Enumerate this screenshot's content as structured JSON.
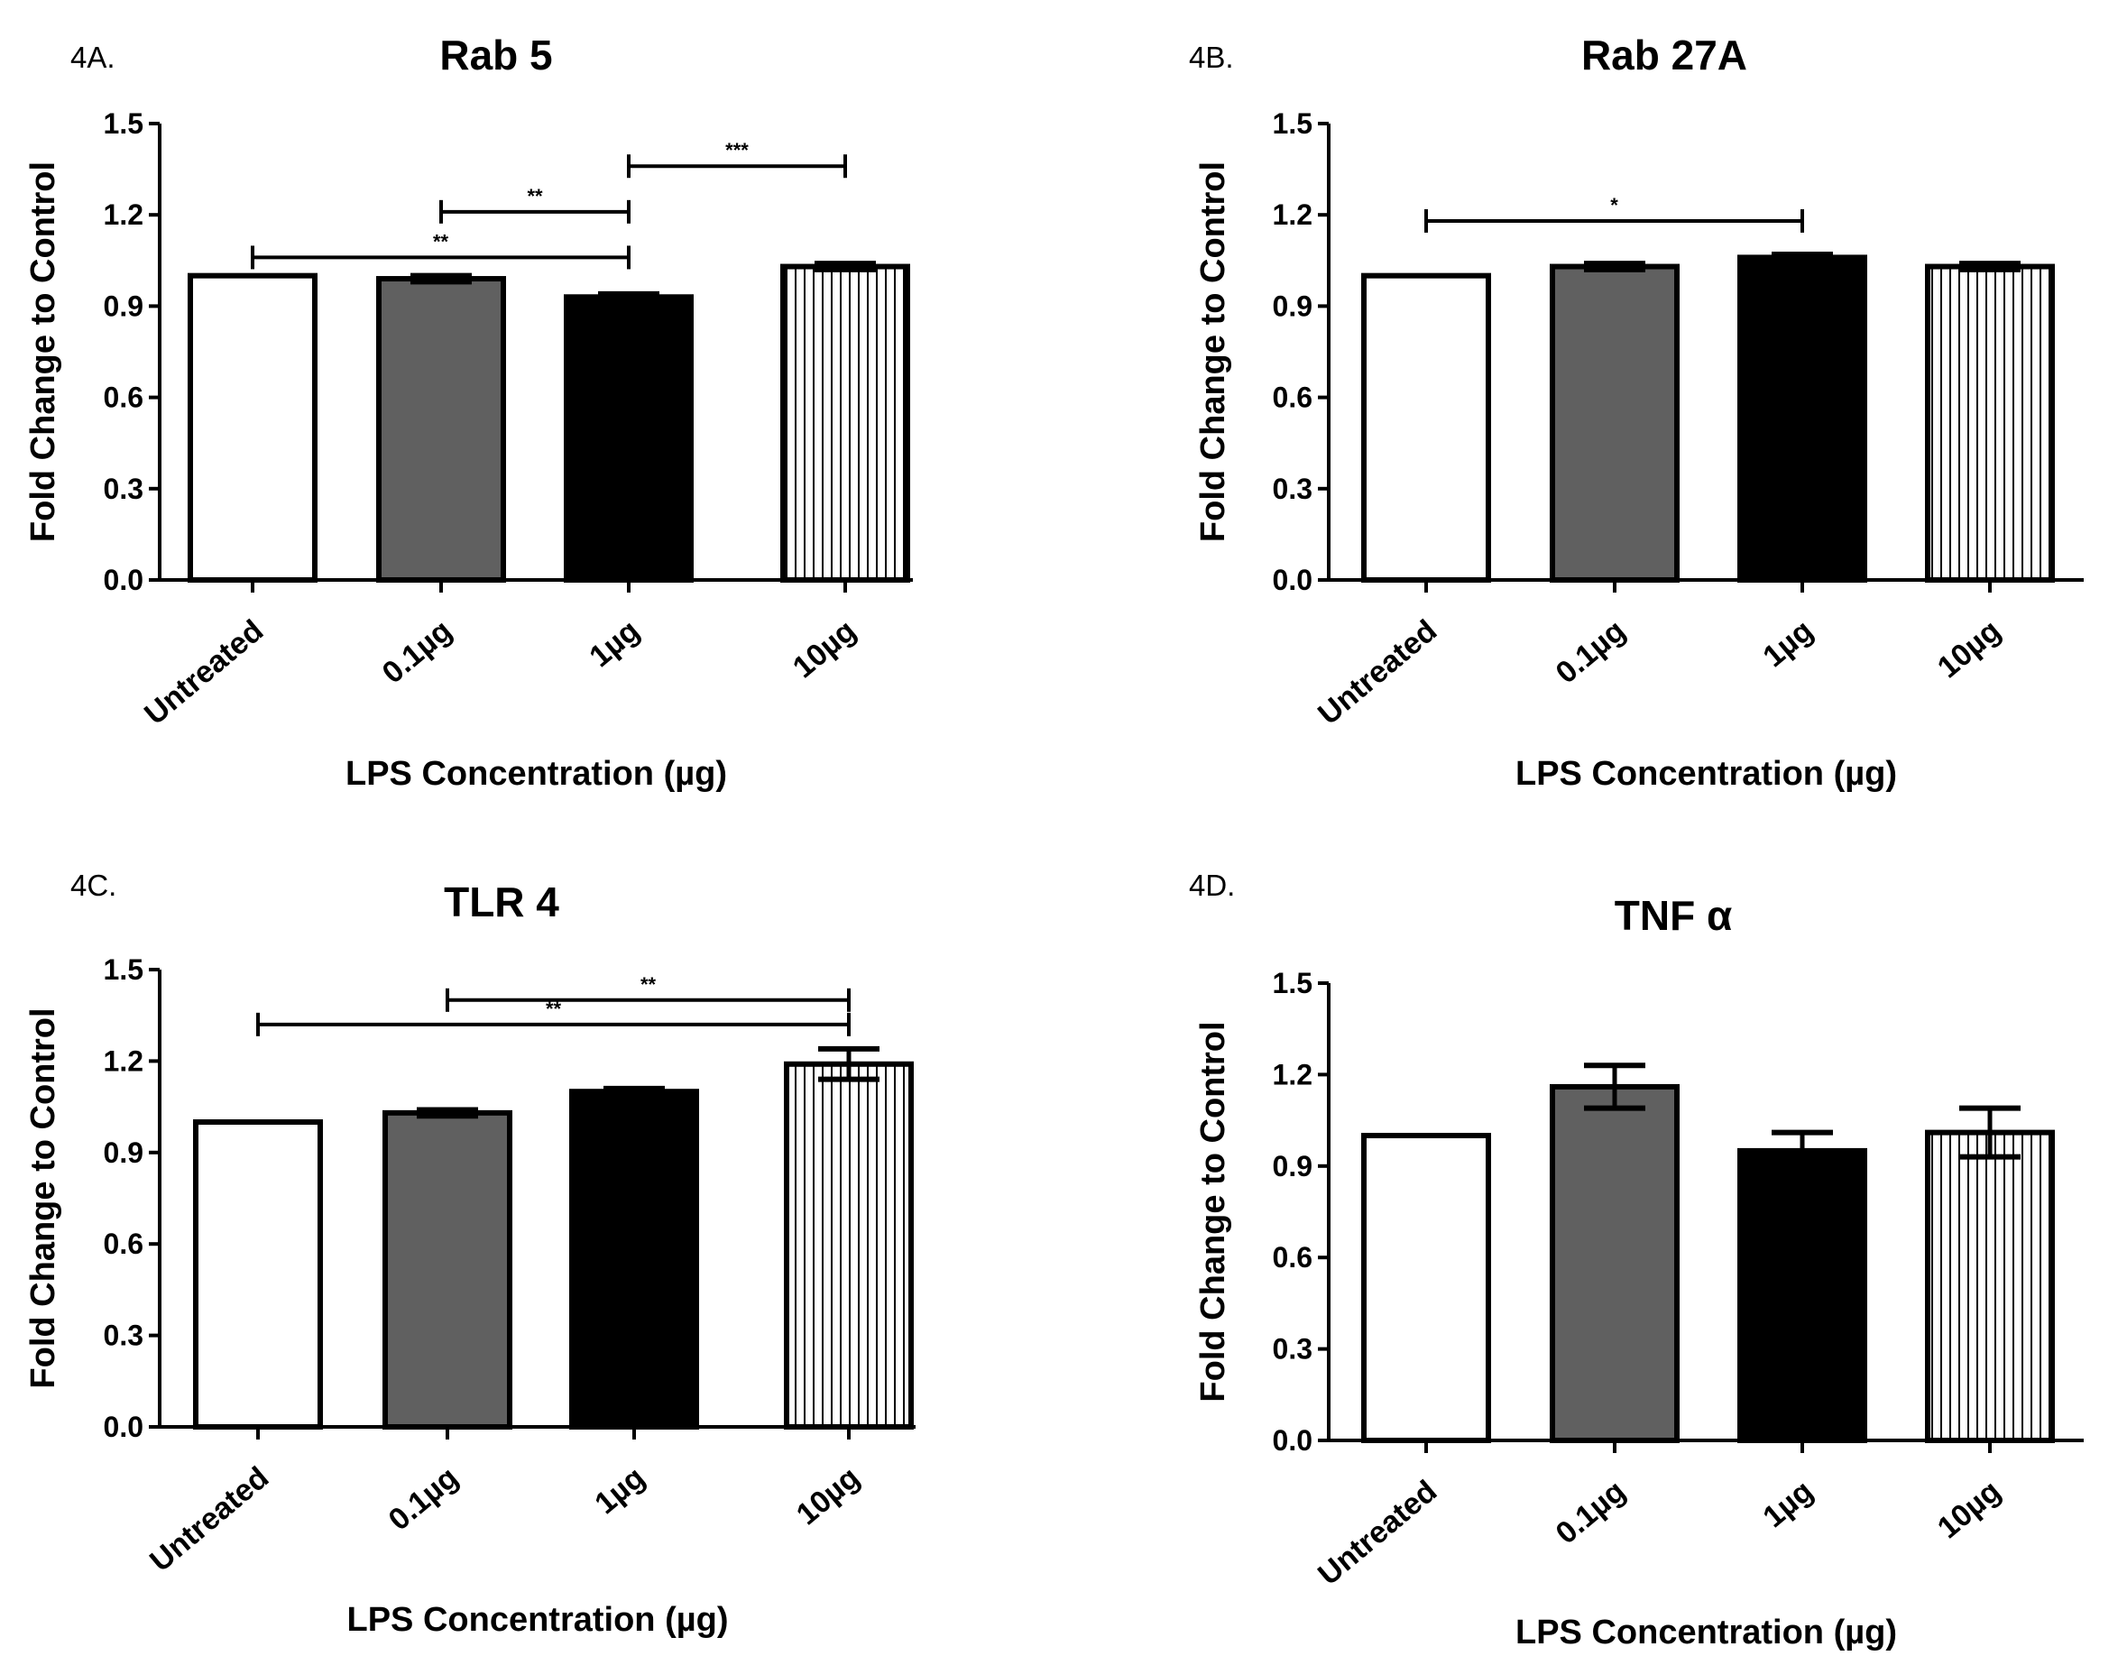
{
  "chart_data": [
    {
      "panel": "4A.",
      "type": "bar",
      "title": "Rab 5",
      "xlabel": "LPS Concentration (µg)",
      "ylabel": "Fold Change to Control",
      "ylim": [
        0,
        1.5
      ],
      "yticks": [
        "0.0",
        "0.3",
        "0.6",
        "0.9",
        "1.2",
        "1.5"
      ],
      "categories": [
        "Untreated",
        "0.1µg",
        "1µg",
        "10µg"
      ],
      "values": [
        1.0,
        0.99,
        0.93,
        1.03
      ],
      "errors": [
        0,
        0.01,
        0.01,
        0.01
      ],
      "fills": [
        "white",
        "gray",
        "black",
        "stripes"
      ],
      "significance": [
        {
          "from": 1,
          "to": 2,
          "y": 1.21,
          "label": "**"
        },
        {
          "from": 0,
          "to": 2,
          "y": 1.06,
          "label": "**"
        },
        {
          "from": 2,
          "to": 3,
          "y": 1.36,
          "label": "***"
        }
      ]
    },
    {
      "panel": "4B.",
      "type": "bar",
      "title": "Rab 27A",
      "xlabel": "LPS Concentration (µg)",
      "ylabel": "Fold Change to Control",
      "ylim": [
        0,
        1.5
      ],
      "yticks": [
        "0.0",
        "0.3",
        "0.6",
        "0.9",
        "1.2",
        "1.5"
      ],
      "categories": [
        "Untreated",
        "0.1µg",
        "1µg",
        "10µg"
      ],
      "values": [
        1.0,
        1.03,
        1.06,
        1.03
      ],
      "errors": [
        0,
        0.01,
        0.01,
        0.01
      ],
      "fills": [
        "white",
        "gray",
        "black",
        "stripes"
      ],
      "significance": [
        {
          "from": 0,
          "to": 2,
          "y": 1.18,
          "label": "*"
        }
      ]
    },
    {
      "panel": "4C.",
      "type": "bar",
      "title": "TLR 4",
      "xlabel": "LPS Concentration (µg)",
      "ylabel": "Fold Change to Control",
      "ylim": [
        0,
        1.5
      ],
      "yticks": [
        "0.0",
        "0.3",
        "0.6",
        "0.9",
        "1.2",
        "1.5"
      ],
      "categories": [
        "Untreated",
        "0.1µg",
        "1µg",
        "10µg"
      ],
      "values": [
        1.0,
        1.03,
        1.1,
        1.19
      ],
      "errors": [
        0,
        0.01,
        0.01,
        0.05
      ],
      "fills": [
        "white",
        "gray",
        "black",
        "stripes"
      ],
      "significance": [
        {
          "from": 1,
          "to": 3,
          "y": 1.4,
          "label": "**"
        },
        {
          "from": 0,
          "to": 3,
          "y": 1.32,
          "label": "**"
        }
      ]
    },
    {
      "panel": "4D.",
      "type": "bar",
      "title": "TNF α",
      "xlabel": "LPS Concentration (µg)",
      "ylabel": "Fold Change to Control",
      "ylim": [
        0,
        1.5
      ],
      "yticks": [
        "0.0",
        "0.3",
        "0.6",
        "0.9",
        "1.2",
        "1.5"
      ],
      "categories": [
        "Untreated",
        "0.1µg",
        "1µg",
        "10µg"
      ],
      "values": [
        1.0,
        1.16,
        0.95,
        1.01
      ],
      "errors": [
        0,
        0.07,
        0.06,
        0.08
      ],
      "fills": [
        "white",
        "gray",
        "black",
        "stripes"
      ],
      "significance": []
    }
  ]
}
